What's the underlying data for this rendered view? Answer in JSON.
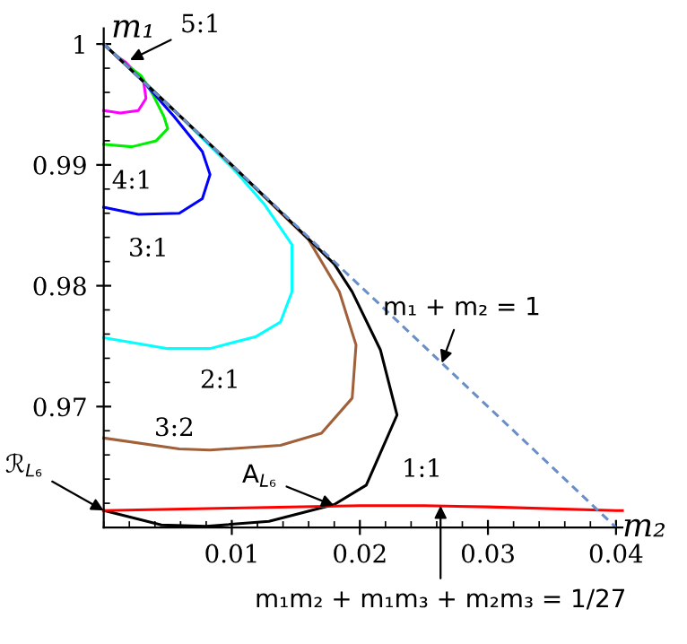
{
  "chart_data": {
    "type": "line",
    "xlabel": "m₂",
    "ylabel": "m₁",
    "xlim": [
      0,
      0.0405
    ],
    "ylim": [
      0.96,
      1.0013
    ],
    "xticks": [
      0.01,
      0.02,
      0.03,
      0.04
    ],
    "yticks": [
      0.97,
      0.98,
      0.99,
      1
    ],
    "grid": false,
    "marker": "none",
    "series": [
      {
        "name": "5:1",
        "color": "#ff00ff",
        "x": [
          0,
          0.001,
          0.0017,
          0.0031,
          0.0033,
          0.0027,
          0.0013,
          0
        ],
        "values": [
          1,
          0.999,
          0.9985,
          0.997,
          0.9955,
          0.9945,
          0.9943,
          0.9945
        ]
      },
      {
        "name": "4:1",
        "color": "#00ee00",
        "x": [
          0,
          0.0015,
          0.0029,
          0.0038,
          0.0047,
          0.005,
          0.0041,
          0.0022,
          0
        ],
        "values": [
          1,
          0.9985,
          0.9974,
          0.9959,
          0.994,
          0.993,
          0.992,
          0.9915,
          0.9917
        ]
      },
      {
        "name": "3:1",
        "color": "#0000ff",
        "x": [
          0,
          0.003,
          0.0055,
          0.0077,
          0.0083,
          0.0077,
          0.0059,
          0.0027,
          0
        ],
        "values": [
          1,
          0.997,
          0.994,
          0.9911,
          0.9892,
          0.9872,
          0.986,
          0.9859,
          0.9865
        ]
      },
      {
        "name": "2:1",
        "color": "#00ffff",
        "x": [
          0,
          0.005,
          0.0101,
          0.0125,
          0.0147,
          0.0147,
          0.0138,
          0.0119,
          0.0083,
          0.005,
          0
        ],
        "values": [
          1,
          0.995,
          0.9897,
          0.9868,
          0.9834,
          0.9795,
          0.977,
          0.9758,
          0.9748,
          0.9748,
          0.9757
        ]
      },
      {
        "name": "3:2",
        "color": "#a0603a",
        "x": [
          0,
          0.008,
          0.016,
          0.0184,
          0.0197,
          0.0194,
          0.017,
          0.0138,
          0.0083,
          0.0059,
          0
        ],
        "values": [
          1,
          0.992,
          0.9838,
          0.9795,
          0.9751,
          0.9707,
          0.9678,
          0.9668,
          0.9664,
          0.9665,
          0.9674
        ]
      },
      {
        "name": "1:1",
        "color": "#000000",
        "x": [
          0,
          0.005,
          0.01,
          0.015,
          0.018,
          0.0194,
          0.0216,
          0.0229,
          0.0205,
          0.018,
          0.0129,
          0.008,
          0.0045,
          0
        ],
        "values": [
          1,
          0.995,
          0.99,
          0.9849,
          0.9818,
          0.9795,
          0.9747,
          0.9693,
          0.9635,
          0.9619,
          0.9605,
          0.9601,
          0.9602,
          0.9614
        ]
      },
      {
        "color": "#ff0000",
        "x": [
          0,
          0.01,
          0.02,
          0.025,
          0.03,
          0.04,
          0.0405
        ],
        "values": [
          0.9614,
          0.9616,
          0.9618,
          0.9618,
          0.9617,
          0.9614,
          0.9614
        ]
      },
      {
        "color": "#6a8fc8",
        "line_style": "dashed",
        "x": [
          0,
          0.04
        ],
        "values": [
          1,
          0.96
        ]
      }
    ],
    "annotations": [
      {
        "text": "m₁ + m₂ = 1",
        "x": 0.0264,
        "y": 0.9736
      },
      {
        "text": "ℛ$_{L₆}$",
        "x": 0,
        "y": 0.9614
      },
      {
        "text": "A$_{L₆}$",
        "x": 0.018,
        "y": 0.9618
      },
      {
        "text": "m₁m₂ + m₁m₃ + m₂m₃ = 1/27",
        "x": 0.0263,
        "y": 0.9618
      }
    ]
  }
}
